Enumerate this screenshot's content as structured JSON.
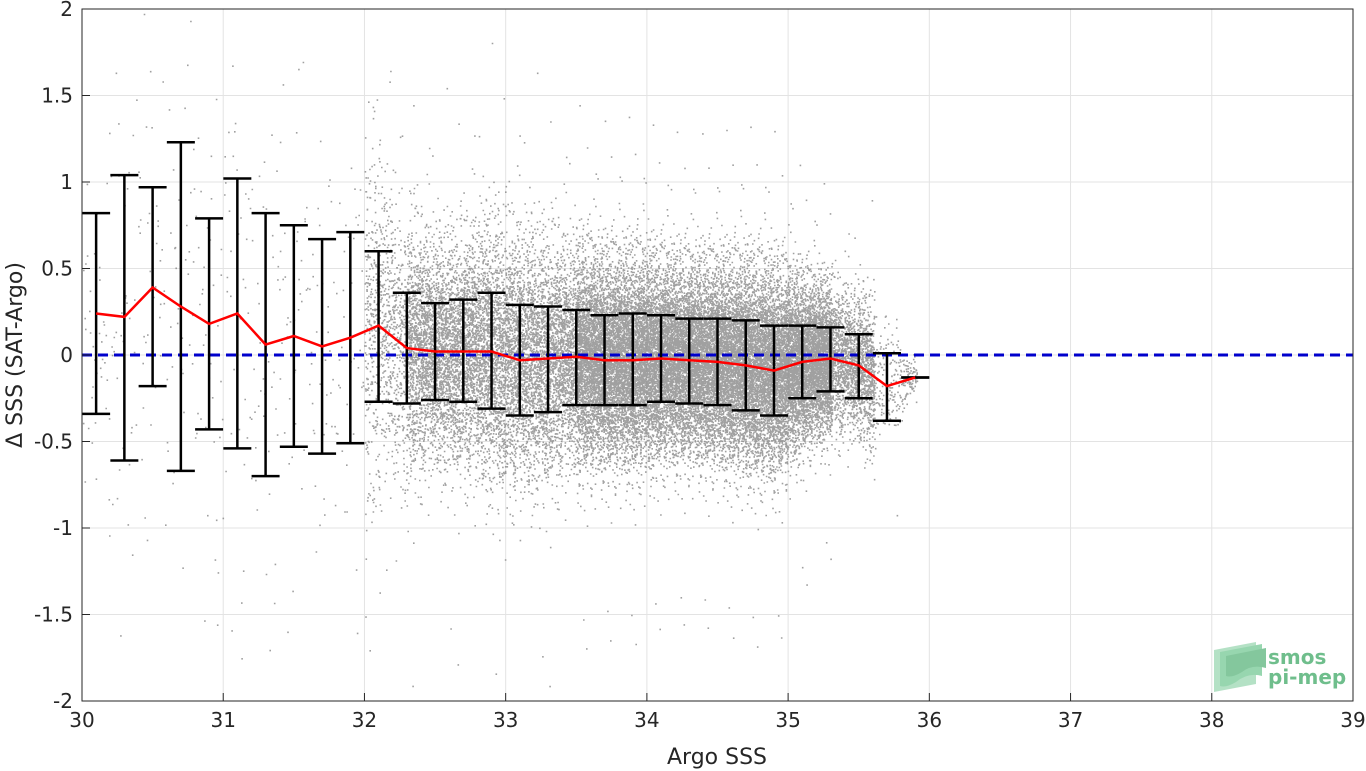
{
  "chart_data": {
    "type": "scatter",
    "xlabel": "Argo SSS",
    "ylabel": "Δ SSS (SAT-Argo)",
    "xlim": [
      30,
      39
    ],
    "ylim": [
      -2,
      2
    ],
    "x_ticks": [
      30,
      31,
      32,
      33,
      34,
      35,
      36,
      37,
      38,
      39
    ],
    "y_ticks": [
      -2,
      -1.5,
      -1,
      -0.5,
      0,
      0.5,
      1,
      1.5,
      2
    ],
    "x_tick_labels": [
      "30",
      "31",
      "32",
      "33",
      "34",
      "35",
      "36",
      "37",
      "38",
      "39"
    ],
    "y_tick_labels": [
      "-2",
      "-1.5",
      "-1",
      "-0.5",
      "0",
      "0.5",
      "1",
      "1.5",
      "2"
    ],
    "grid": true,
    "reference_line": {
      "y": 0,
      "color": "#0000cc",
      "style": "dashed"
    },
    "scatter_color": "#808080",
    "mean_color": "#ff0000",
    "errorbar_color": "#000000",
    "bins": [
      {
        "x": 30.1,
        "mean": 0.24,
        "low": -0.34,
        "high": 0.82
      },
      {
        "x": 30.3,
        "mean": 0.22,
        "low": -0.61,
        "high": 1.04
      },
      {
        "x": 30.5,
        "mean": 0.39,
        "low": -0.18,
        "high": 0.97
      },
      {
        "x": 30.7,
        "mean": 0.28,
        "low": -0.67,
        "high": 1.23
      },
      {
        "x": 30.9,
        "mean": 0.18,
        "low": -0.43,
        "high": 0.79
      },
      {
        "x": 31.1,
        "mean": 0.24,
        "low": -0.54,
        "high": 1.02
      },
      {
        "x": 31.3,
        "mean": 0.06,
        "low": -0.7,
        "high": 0.82
      },
      {
        "x": 31.5,
        "mean": 0.11,
        "low": -0.53,
        "high": 0.75
      },
      {
        "x": 31.7,
        "mean": 0.05,
        "low": -0.57,
        "high": 0.67
      },
      {
        "x": 31.9,
        "mean": 0.1,
        "low": -0.51,
        "high": 0.71
      },
      {
        "x": 32.1,
        "mean": 0.17,
        "low": -0.27,
        "high": 0.6
      },
      {
        "x": 32.3,
        "mean": 0.04,
        "low": -0.28,
        "high": 0.36
      },
      {
        "x": 32.5,
        "mean": 0.02,
        "low": -0.26,
        "high": 0.3
      },
      {
        "x": 32.7,
        "mean": 0.02,
        "low": -0.27,
        "high": 0.32
      },
      {
        "x": 32.9,
        "mean": 0.02,
        "low": -0.31,
        "high": 0.36
      },
      {
        "x": 33.1,
        "mean": -0.03,
        "low": -0.35,
        "high": 0.29
      },
      {
        "x": 33.3,
        "mean": -0.02,
        "low": -0.33,
        "high": 0.28
      },
      {
        "x": 33.5,
        "mean": -0.01,
        "low": -0.29,
        "high": 0.26
      },
      {
        "x": 33.7,
        "mean": -0.03,
        "low": -0.29,
        "high": 0.23
      },
      {
        "x": 33.9,
        "mean": -0.03,
        "low": -0.29,
        "high": 0.24
      },
      {
        "x": 34.1,
        "mean": -0.02,
        "low": -0.27,
        "high": 0.23
      },
      {
        "x": 34.3,
        "mean": -0.03,
        "low": -0.28,
        "high": 0.21
      },
      {
        "x": 34.5,
        "mean": -0.04,
        "low": -0.29,
        "high": 0.21
      },
      {
        "x": 34.7,
        "mean": -0.06,
        "low": -0.32,
        "high": 0.2
      },
      {
        "x": 34.9,
        "mean": -0.09,
        "low": -0.35,
        "high": 0.17
      },
      {
        "x": 35.1,
        "mean": -0.04,
        "low": -0.25,
        "high": 0.17
      },
      {
        "x": 35.3,
        "mean": -0.02,
        "low": -0.21,
        "high": 0.16
      },
      {
        "x": 35.5,
        "mean": -0.06,
        "low": -0.25,
        "high": 0.12
      },
      {
        "x": 35.7,
        "mean": -0.18,
        "low": -0.38,
        "high": 0.01
      },
      {
        "x": 35.9,
        "mean": -0.13,
        "low": -0.13,
        "high": -0.13
      }
    ]
  },
  "logo": {
    "line1": "smos",
    "line2": "pi-mep",
    "color": "#6fbe8c"
  }
}
